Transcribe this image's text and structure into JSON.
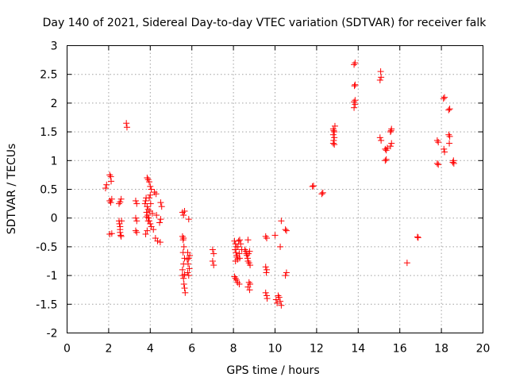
{
  "chart_data": {
    "type": "scatter",
    "title": "Day 140 of 2021, Sidereal Day-to-day VTEC variation (SDTVAR) for receiver falk",
    "xlabel": "GPS time / hours",
    "ylabel": "SDTVAR / TECUs",
    "xlim": [
      0,
      20
    ],
    "ylim": [
      -2,
      3
    ],
    "xticks": [
      "0",
      "2",
      "4",
      "6",
      "8",
      "10",
      "12",
      "14",
      "16",
      "18",
      "20"
    ],
    "yticks": [
      "-2",
      "-1.5",
      "-1",
      "-0.5",
      "0",
      "0.5",
      "1",
      "1.5",
      "2",
      "2.5",
      "3"
    ],
    "grid": true,
    "marker": "+",
    "color": "#ff0000",
    "series": [
      {
        "name": "SDTVAR",
        "points": [
          [
            1.85,
            0.52
          ],
          [
            1.9,
            0.58
          ],
          [
            2.05,
            0.75
          ],
          [
            2.1,
            0.72
          ],
          [
            2.12,
            0.64
          ],
          [
            2.05,
            0.3
          ],
          [
            2.1,
            0.27
          ],
          [
            2.15,
            0.33
          ],
          [
            2.05,
            -0.28
          ],
          [
            2.15,
            -0.27
          ],
          [
            2.5,
            -0.05
          ],
          [
            2.52,
            -0.1
          ],
          [
            2.55,
            -0.15
          ],
          [
            2.55,
            -0.2
          ],
          [
            2.55,
            -0.25
          ],
          [
            2.58,
            -0.3
          ],
          [
            2.6,
            -0.32
          ],
          [
            2.5,
            0.25
          ],
          [
            2.55,
            0.28
          ],
          [
            2.6,
            0.33
          ],
          [
            2.62,
            -0.05
          ],
          [
            2.85,
            1.65
          ],
          [
            2.88,
            1.58
          ],
          [
            3.3,
            0.3
          ],
          [
            3.35,
            0.25
          ],
          [
            3.3,
            0.0
          ],
          [
            3.35,
            -0.05
          ],
          [
            3.3,
            -0.22
          ],
          [
            3.35,
            -0.25
          ],
          [
            3.75,
            0.25
          ],
          [
            3.78,
            0.3
          ],
          [
            3.8,
            0.35
          ],
          [
            3.82,
            0.1
          ],
          [
            3.85,
            0.2
          ],
          [
            3.88,
            0.05
          ],
          [
            3.9,
            0.15
          ],
          [
            3.92,
            0.0
          ],
          [
            3.95,
            -0.05
          ],
          [
            3.98,
            0.12
          ],
          [
            4.0,
            -0.1
          ],
          [
            4.02,
            0.25
          ],
          [
            4.05,
            -0.15
          ],
          [
            3.85,
            0.7
          ],
          [
            3.9,
            0.67
          ],
          [
            3.95,
            0.63
          ],
          [
            4.0,
            0.55
          ],
          [
            4.05,
            0.5
          ],
          [
            3.78,
            -0.28
          ],
          [
            3.85,
            -0.22
          ],
          [
            3.9,
            -0.05
          ],
          [
            3.82,
            0.02
          ],
          [
            3.95,
            0.35
          ],
          [
            4.0,
            0.4
          ],
          [
            4.1,
            0.08
          ],
          [
            4.2,
            0.45
          ],
          [
            4.28,
            0.42
          ],
          [
            4.25,
            -0.35
          ],
          [
            4.35,
            -0.4
          ],
          [
            4.45,
            -0.08
          ],
          [
            4.5,
            -0.02
          ],
          [
            4.55,
            0.2
          ],
          [
            4.5,
            0.27
          ],
          [
            4.48,
            -0.42
          ],
          [
            4.3,
            0.05
          ],
          [
            4.15,
            -0.2
          ],
          [
            5.55,
            -0.32
          ],
          [
            5.6,
            -0.35
          ],
          [
            5.62,
            -0.5
          ],
          [
            5.58,
            -0.6
          ],
          [
            5.65,
            -0.7
          ],
          [
            5.6,
            -0.8
          ],
          [
            5.55,
            -0.9
          ],
          [
            5.65,
            -0.98
          ],
          [
            5.6,
            -1.05
          ],
          [
            5.62,
            -1.15
          ],
          [
            5.65,
            -1.22
          ],
          [
            5.68,
            -1.3
          ],
          [
            5.55,
            -1.0
          ],
          [
            5.58,
            -0.38
          ],
          [
            5.55,
            0.1
          ],
          [
            5.6,
            0.05
          ],
          [
            5.65,
            0.12
          ],
          [
            5.85,
            -0.02
          ],
          [
            5.8,
            -0.6
          ],
          [
            5.85,
            -0.7
          ],
          [
            5.82,
            -0.8
          ],
          [
            5.88,
            -0.88
          ],
          [
            5.8,
            -0.95
          ],
          [
            5.85,
            -1.0
          ],
          [
            5.9,
            -0.65
          ],
          [
            5.78,
            -0.72
          ],
          [
            7.0,
            -0.55
          ],
          [
            7.05,
            -0.62
          ],
          [
            7.0,
            -0.75
          ],
          [
            7.05,
            -0.82
          ],
          [
            8.05,
            -0.4
          ],
          [
            8.1,
            -0.45
          ],
          [
            8.15,
            -0.5
          ],
          [
            8.08,
            -0.55
          ],
          [
            8.12,
            -0.6
          ],
          [
            8.15,
            -0.65
          ],
          [
            8.18,
            -0.68
          ],
          [
            8.2,
            -0.72
          ],
          [
            8.1,
            -0.75
          ],
          [
            8.25,
            -0.4
          ],
          [
            8.3,
            -0.38
          ],
          [
            8.28,
            -0.62
          ],
          [
            8.22,
            -0.5
          ],
          [
            8.05,
            -1.02
          ],
          [
            8.1,
            -1.05
          ],
          [
            8.15,
            -1.08
          ],
          [
            8.2,
            -1.12
          ],
          [
            8.28,
            -1.15
          ],
          [
            8.35,
            -0.45
          ],
          [
            8.4,
            -0.55
          ],
          [
            8.3,
            -0.7
          ],
          [
            8.55,
            -0.55
          ],
          [
            8.6,
            -0.58
          ],
          [
            8.62,
            -0.62
          ],
          [
            8.65,
            -0.65
          ],
          [
            8.68,
            -0.7
          ],
          [
            8.7,
            -0.75
          ],
          [
            8.75,
            -0.78
          ],
          [
            8.8,
            -0.82
          ],
          [
            8.72,
            -0.62
          ],
          [
            8.78,
            -0.58
          ],
          [
            8.7,
            -0.38
          ],
          [
            8.75,
            -1.12
          ],
          [
            8.8,
            -1.15
          ],
          [
            8.7,
            -1.2
          ],
          [
            8.78,
            -1.25
          ],
          [
            9.55,
            -0.32
          ],
          [
            9.6,
            -0.35
          ],
          [
            9.55,
            -0.85
          ],
          [
            9.6,
            -0.9
          ],
          [
            9.55,
            -1.3
          ],
          [
            9.6,
            -1.35
          ],
          [
            9.62,
            -1.4
          ],
          [
            9.58,
            -0.95
          ],
          [
            10.0,
            -0.3
          ],
          [
            10.05,
            -1.42
          ],
          [
            10.1,
            -1.48
          ],
          [
            10.15,
            -1.35
          ],
          [
            10.2,
            -1.38
          ],
          [
            10.25,
            -1.45
          ],
          [
            10.3,
            -1.52
          ],
          [
            10.25,
            -0.5
          ],
          [
            10.3,
            -0.05
          ],
          [
            10.5,
            -0.2
          ],
          [
            10.55,
            -0.22
          ],
          [
            10.55,
            -0.95
          ],
          [
            10.5,
            -1.0
          ],
          [
            11.8,
            0.55
          ],
          [
            11.85,
            0.56
          ],
          [
            12.25,
            0.42
          ],
          [
            12.3,
            0.44
          ],
          [
            12.8,
            1.3
          ],
          [
            12.82,
            1.35
          ],
          [
            12.85,
            1.4
          ],
          [
            12.8,
            1.45
          ],
          [
            12.85,
            1.5
          ],
          [
            12.8,
            1.55
          ],
          [
            12.88,
            1.6
          ],
          [
            12.85,
            1.28
          ],
          [
            12.82,
            1.52
          ],
          [
            13.8,
            2.02
          ],
          [
            13.85,
            1.98
          ],
          [
            13.8,
            1.92
          ],
          [
            13.85,
            2.05
          ],
          [
            13.82,
            2.3
          ],
          [
            13.85,
            2.32
          ],
          [
            13.8,
            2.67
          ],
          [
            13.85,
            2.7
          ],
          [
            15.05,
            1.4
          ],
          [
            15.1,
            1.35
          ],
          [
            15.05,
            2.4
          ],
          [
            15.1,
            2.45
          ],
          [
            15.08,
            2.55
          ],
          [
            15.3,
            1.0
          ],
          [
            15.35,
            1.02
          ],
          [
            15.3,
            1.2
          ],
          [
            15.35,
            1.18
          ],
          [
            15.4,
            1.22
          ],
          [
            15.6,
            1.3
          ],
          [
            15.55,
            1.25
          ],
          [
            15.55,
            1.5
          ],
          [
            15.6,
            1.55
          ],
          [
            15.58,
            1.52
          ],
          [
            16.35,
            -0.78
          ],
          [
            16.85,
            -0.33
          ],
          [
            16.88,
            -0.34
          ],
          [
            17.8,
            0.95
          ],
          [
            17.85,
            0.93
          ],
          [
            17.8,
            1.35
          ],
          [
            17.85,
            1.32
          ],
          [
            18.1,
            2.08
          ],
          [
            18.15,
            2.1
          ],
          [
            18.12,
            1.2
          ],
          [
            18.15,
            1.15
          ],
          [
            18.35,
            1.88
          ],
          [
            18.4,
            1.9
          ],
          [
            18.35,
            1.45
          ],
          [
            18.4,
            1.42
          ],
          [
            18.38,
            1.3
          ],
          [
            18.55,
            0.97
          ],
          [
            18.6,
            0.95
          ],
          [
            18.58,
            1.0
          ]
        ]
      }
    ]
  }
}
